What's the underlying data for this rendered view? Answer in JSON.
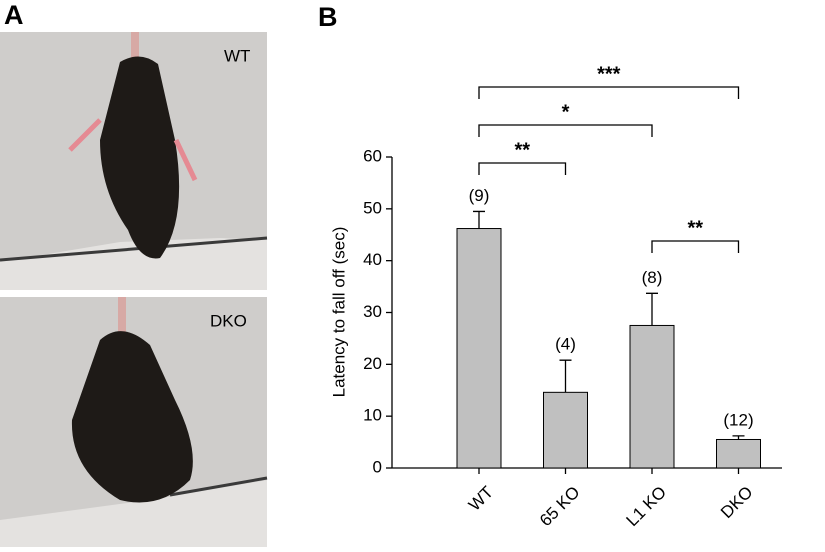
{
  "panel_a": {
    "label": "A",
    "photos": [
      {
        "label": "WT"
      },
      {
        "label": "DKO"
      }
    ]
  },
  "panel_b": {
    "label": "B"
  },
  "chart_data": {
    "type": "bar",
    "ylabel": "Latency to fall off (sec)",
    "categories": [
      "WT",
      "65 KO",
      "L1 KO",
      "DKO"
    ],
    "values": [
      46.2,
      14.6,
      27.5,
      5.5
    ],
    "errors": [
      3.3,
      6.2,
      6.2,
      0.7
    ],
    "n_labels": [
      "(9)",
      "(4)",
      "(8)",
      "(12)"
    ],
    "color": "#c0c0c0",
    "ylim": [
      0,
      60
    ],
    "yticks": [
      0,
      10,
      20,
      30,
      40,
      50,
      60
    ],
    "significance": [
      {
        "from": 0,
        "to": 1,
        "text": "**"
      },
      {
        "from": 0,
        "to": 2,
        "text": "*"
      },
      {
        "from": 0,
        "to": 3,
        "text": "***"
      },
      {
        "from": 2,
        "to": 3,
        "text": "**"
      }
    ]
  }
}
